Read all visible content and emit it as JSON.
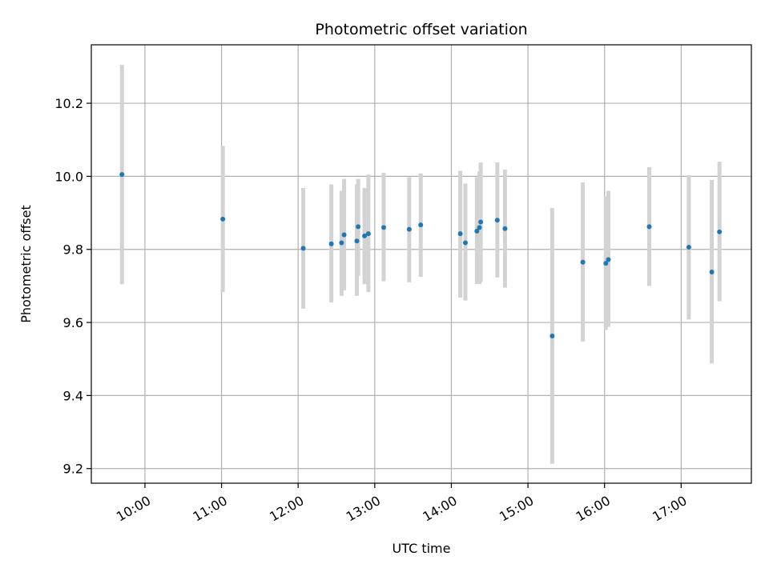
{
  "chart_data": {
    "type": "scatter",
    "title": "Photometric offset variation",
    "xlabel": "UTC time",
    "ylabel": "Photometric offset",
    "xlim": [
      "09:18",
      "17:55"
    ],
    "ylim": [
      9.16,
      10.36
    ],
    "grid": true,
    "x_ticks": [
      "10:00",
      "11:00",
      "12:00",
      "13:00",
      "14:00",
      "15:00",
      "16:00",
      "17:00"
    ],
    "y_ticks": [
      9.2,
      9.4,
      9.6,
      9.8,
      10.0,
      10.2
    ],
    "y_tick_labels": [
      "9.2",
      "9.4",
      "9.6",
      "9.8",
      "10.0",
      "10.2"
    ],
    "point_color": "#1f77b4",
    "errorbar_color": "#d3d3d3",
    "points": [
      {
        "time": "09:42",
        "value": 10.005,
        "low": 9.705,
        "high": 10.305
      },
      {
        "time": "11:01",
        "value": 9.883,
        "low": 9.683,
        "high": 10.083
      },
      {
        "time": "12:04",
        "value": 9.803,
        "low": 9.638,
        "high": 9.968
      },
      {
        "time": "12:26",
        "value": 9.815,
        "low": 9.655,
        "high": 9.978
      },
      {
        "time": "12:34",
        "value": 9.818,
        "low": 9.673,
        "high": 9.96
      },
      {
        "time": "12:36",
        "value": 9.84,
        "low": 9.688,
        "high": 9.993
      },
      {
        "time": "12:46",
        "value": 9.823,
        "low": 9.673,
        "high": 9.978
      },
      {
        "time": "12:47",
        "value": 9.862,
        "low": 9.728,
        "high": 9.993
      },
      {
        "time": "12:52",
        "value": 9.837,
        "low": 9.705,
        "high": 9.968
      },
      {
        "time": "12:55",
        "value": 9.843,
        "low": 9.683,
        "high": 10.005
      },
      {
        "time": "13:07",
        "value": 9.86,
        "low": 9.713,
        "high": 10.01
      },
      {
        "time": "13:27",
        "value": 9.855,
        "low": 9.71,
        "high": 9.998
      },
      {
        "time": "13:36",
        "value": 9.867,
        "low": 9.725,
        "high": 10.008
      },
      {
        "time": "14:07",
        "value": 9.843,
        "low": 9.668,
        "high": 10.015
      },
      {
        "time": "14:11",
        "value": 9.818,
        "low": 9.66,
        "high": 9.98
      },
      {
        "time": "14:20",
        "value": 9.85,
        "low": 9.705,
        "high": 9.998
      },
      {
        "time": "14:22",
        "value": 9.86,
        "low": 9.705,
        "high": 10.013
      },
      {
        "time": "14:23",
        "value": 9.875,
        "low": 9.71,
        "high": 10.038
      },
      {
        "time": "14:36",
        "value": 9.88,
        "low": 9.723,
        "high": 10.038
      },
      {
        "time": "14:42",
        "value": 9.857,
        "low": 9.695,
        "high": 10.018
      },
      {
        "time": "15:19",
        "value": 9.563,
        "low": 9.213,
        "high": 9.913
      },
      {
        "time": "15:43",
        "value": 9.765,
        "low": 9.548,
        "high": 9.983
      },
      {
        "time": "16:01",
        "value": 9.762,
        "low": 9.58,
        "high": 9.945
      },
      {
        "time": "16:03",
        "value": 9.772,
        "low": 9.588,
        "high": 9.96
      },
      {
        "time": "16:35",
        "value": 9.862,
        "low": 9.7,
        "high": 10.025
      },
      {
        "time": "17:06",
        "value": 9.806,
        "low": 9.608,
        "high": 10.003
      },
      {
        "time": "17:24",
        "value": 9.738,
        "low": 9.488,
        "high": 9.99
      },
      {
        "time": "17:30",
        "value": 9.848,
        "low": 9.658,
        "high": 10.04
      }
    ]
  }
}
